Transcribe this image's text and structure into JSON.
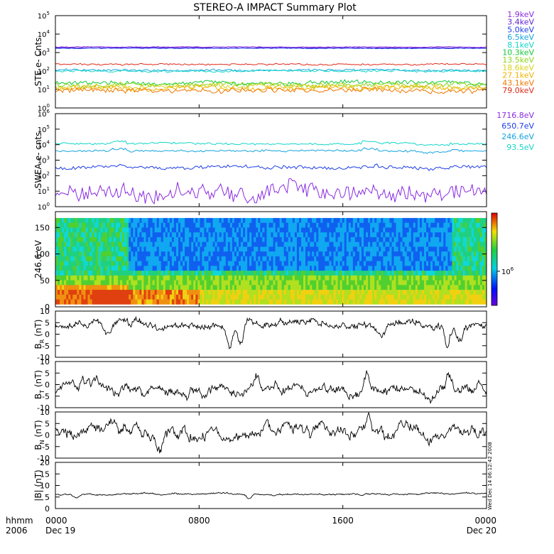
{
  "title": "STEREO-A IMPACT Summary Plot",
  "time_axis": {
    "corner_top": "hhmm",
    "corner_bottom": "2006",
    "ticks": [
      {
        "t": 0,
        "top": "0000",
        "bottom": "Dec 19"
      },
      {
        "t": 8,
        "top": "0800",
        "bottom": ""
      },
      {
        "t": 16,
        "top": "1600",
        "bottom": ""
      },
      {
        "t": 24,
        "top": "0000",
        "bottom": "Dec 20"
      }
    ],
    "range_hours": [
      0,
      24
    ]
  },
  "side_stamp": "Wed Dec 14 06:12:42 2008",
  "chart_data": [
    {
      "type": "line",
      "id": "ste",
      "ylabel": "STE e- Cnts",
      "yscale": "log",
      "ylim": [
        1,
        100000
      ],
      "yticks": [
        {
          "base": "10",
          "exp": "0"
        },
        {
          "base": "10",
          "exp": "1"
        },
        {
          "base": "10",
          "exp": "2"
        },
        {
          "base": "10",
          "exp": "3"
        },
        {
          "base": "10",
          "exp": "4"
        },
        {
          "base": "10",
          "exp": "5"
        }
      ],
      "series": [
        {
          "name": "1.9keV",
          "color": "#8a2be2",
          "level": 2000,
          "noise": 0.015
        },
        {
          "name": "3.4keV",
          "color": "#5b1fd1",
          "level": 1800,
          "noise": 0.015
        },
        {
          "name": "5.0keV",
          "color": "#1e3de8",
          "level": 1700,
          "noise": 0.015
        },
        {
          "name": "6.5keV",
          "color": "#14a3e0",
          "level": 110,
          "noise": 0.05
        },
        {
          "name": "8.1keV",
          "color": "#12d6c8",
          "level": 100,
          "noise": 0.05
        },
        {
          "name": "10.3keV",
          "color": "#14c93a",
          "level": 22,
          "noise": 0.1
        },
        {
          "name": "13.5keV",
          "color": "#8ad61a",
          "level": 18,
          "noise": 0.1
        },
        {
          "name": "18.6keV",
          "color": "#d8d21a",
          "level": 14,
          "noise": 0.12
        },
        {
          "name": "27.1keV",
          "color": "#f0b400",
          "level": 12,
          "noise": 0.12
        },
        {
          "name": "43.1keV",
          "color": "#f07800",
          "level": 9,
          "noise": 0.12
        },
        {
          "name": "79.0keV",
          "color": "#e02a1a",
          "level": 230,
          "noise": 0.04
        }
      ]
    },
    {
      "type": "line",
      "id": "swea",
      "ylabel": "SWEA e- cnts",
      "yscale": "log",
      "ylim": [
        1,
        1000000
      ],
      "yticks": [
        {
          "base": "10",
          "exp": "0"
        },
        {
          "base": "10",
          "exp": "1"
        },
        {
          "base": "10",
          "exp": "2"
        },
        {
          "base": "10",
          "exp": "3"
        },
        {
          "base": "10",
          "exp": "4"
        },
        {
          "base": "10",
          "exp": "5"
        },
        {
          "base": "10",
          "exp": "6"
        }
      ],
      "series": [
        {
          "name": "1716.8eV",
          "color": "#8a2be2",
          "level": 8,
          "noise": 0.45
        },
        {
          "name": "650.7eV",
          "color": "#1e3de8",
          "level": 350,
          "noise": 0.1
        },
        {
          "name": "246.6eV",
          "color": "#14a3e0",
          "level": 4000,
          "noise": 0.06
        },
        {
          "name": "93.5eV",
          "color": "#12d6c8",
          "level": 12000,
          "noise": 0.06
        }
      ]
    },
    {
      "type": "heatmap",
      "id": "pad",
      "ylabel": "246.6 eV",
      "ylim": [
        0,
        180
      ],
      "yticks": [
        "0",
        "50",
        "100",
        "150"
      ],
      "ytick_values": [
        0,
        50,
        100,
        150
      ],
      "colorbar_label": {
        "base": "10",
        "exp": "6"
      }
    },
    {
      "type": "line",
      "id": "br",
      "ylabel": "B",
      "ylabel_sub": "R",
      "ylabel_unit": "(nT)",
      "ylim": [
        -10,
        10
      ],
      "yticks": [
        "-10",
        "-5",
        "0",
        "5",
        "10"
      ],
      "ytick_values": [
        -10,
        -5,
        0,
        5,
        10
      ],
      "base": 4.5,
      "amp": 1.8,
      "dips": [
        [
          2.8,
          -3
        ],
        [
          9.7,
          -9
        ],
        [
          10.3,
          -7
        ],
        [
          18.2,
          -5
        ],
        [
          21.8,
          -8
        ],
        [
          22.5,
          -7
        ]
      ]
    },
    {
      "type": "line",
      "id": "bt",
      "ylabel": "B",
      "ylabel_sub": "T",
      "ylabel_unit": "(nT)",
      "ylim": [
        -10,
        10
      ],
      "yticks": [
        "-10",
        "-5",
        "0",
        "5",
        "10"
      ],
      "ytick_values": [
        -10,
        -5,
        0,
        5,
        10
      ],
      "base": -2.0,
      "amp": 2.2,
      "dips": [
        [
          11.2,
          7
        ],
        [
          17.3,
          8
        ],
        [
          21.9,
          6
        ],
        [
          23.6,
          3
        ]
      ]
    },
    {
      "type": "line",
      "id": "bn",
      "ylabel": "B",
      "ylabel_sub": "N",
      "ylabel_unit": "(nT)",
      "ylim": [
        -10,
        10
      ],
      "yticks": [
        "-10",
        "-5",
        "0",
        "5",
        "10"
      ],
      "ytick_values": [
        -10,
        -5,
        0,
        5,
        10
      ],
      "base": 1.0,
      "amp": 2.8,
      "dips": [
        [
          3.3,
          5
        ],
        [
          5.8,
          -4
        ],
        [
          17.4,
          7
        ],
        [
          23.5,
          -4
        ]
      ]
    },
    {
      "type": "line",
      "id": "bmag",
      "ylabel": "|B|",
      "ylabel_sub": "",
      "ylabel_unit": "(nT)",
      "ylim": [
        0,
        20
      ],
      "yticks": [
        "0",
        "5",
        "10",
        "15",
        "20"
      ],
      "ytick_values": [
        0,
        5,
        10,
        15,
        20
      ],
      "base": 6.3,
      "amp": 0.35,
      "dips": [
        [
          1.2,
          -1.5
        ],
        [
          10.8,
          -2
        ]
      ]
    }
  ]
}
